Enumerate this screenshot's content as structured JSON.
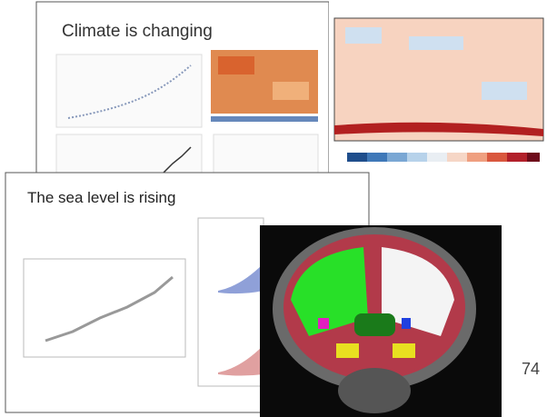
{
  "slide1": {
    "title": "Climate is changing"
  },
  "slide2": {
    "title": "The sea level is rising"
  },
  "page_number": "74"
}
